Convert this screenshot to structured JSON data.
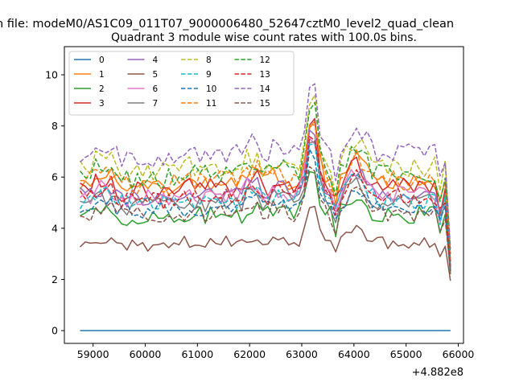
{
  "figure": {
    "suptitle": "n file: modeM0/AS1C09_011T07_9000006480_52647cztM0_level2_quad_clean",
    "offset_label": "+4.882e8"
  },
  "chart_data": {
    "type": "line",
    "title": "Quadrant 3 module wise count rates with 100.0s bins.",
    "xlabel": "",
    "ylabel": "",
    "x_offset": 488200000,
    "xlim": [
      58450,
      66100
    ],
    "ylim": [
      -0.5,
      11.1
    ],
    "xticks": [
      59000,
      60000,
      61000,
      62000,
      63000,
      64000,
      65000,
      66000
    ],
    "xtick_labels": [
      "59000",
      "60000",
      "61000",
      "62000",
      "63000",
      "64000",
      "65000",
      "66000"
    ],
    "yticks": [
      0,
      2,
      4,
      6,
      8,
      10
    ],
    "ytick_labels": [
      "0",
      "2",
      "4",
      "6",
      "8",
      "10"
    ],
    "x_start": 58750,
    "x_step": 100,
    "n_points": 72,
    "legend_position": "upper-left",
    "legend_columns": 4,
    "grid": false,
    "series": [
      {
        "name": "0",
        "color": "#1f77b4",
        "dash": "solid",
        "base": 0.0,
        "amp": 0.0,
        "end": 0.0
      },
      {
        "name": "1",
        "color": "#ff7f0e",
        "dash": "solid",
        "base": 5.8,
        "amp": 0.35,
        "end": 2.3
      },
      {
        "name": "2",
        "color": "#2ca02c",
        "dash": "solid",
        "base": 4.5,
        "amp": 0.35,
        "end": 2.2
      },
      {
        "name": "3",
        "color": "#d62728",
        "dash": "solid",
        "base": 5.6,
        "amp": 0.4,
        "end": 2.7
      },
      {
        "name": "4",
        "color": "#9467bd",
        "dash": "solid",
        "base": 5.3,
        "amp": 0.35,
        "end": 2.5
      },
      {
        "name": "5",
        "color": "#8c564b",
        "dash": "solid",
        "base": 3.45,
        "amp": 0.25,
        "end": 1.95
      },
      {
        "name": "6",
        "color": "#e377c2",
        "dash": "solid",
        "base": 5.3,
        "amp": 0.35,
        "end": 2.4
      },
      {
        "name": "7",
        "color": "#7f7f7f",
        "dash": "solid",
        "base": 5.0,
        "amp": 0.35,
        "end": 2.3
      },
      {
        "name": "8",
        "color": "#bcbd22",
        "dash": "dashed",
        "base": 6.4,
        "amp": 0.4,
        "end": 3.0
      },
      {
        "name": "9",
        "color": "#17becf",
        "dash": "dashed",
        "base": 5.1,
        "amp": 0.35,
        "end": 2.5
      },
      {
        "name": "10",
        "color": "#1f77b4",
        "dash": "dashed",
        "base": 4.8,
        "amp": 0.35,
        "end": 2.3
      },
      {
        "name": "11",
        "color": "#ff7f0e",
        "dash": "dashed",
        "base": 5.9,
        "amp": 0.4,
        "end": 2.8
      },
      {
        "name": "12",
        "color": "#2ca02c",
        "dash": "dashed",
        "base": 6.1,
        "amp": 0.4,
        "end": 3.0
      },
      {
        "name": "13",
        "color": "#d62728",
        "dash": "dashed",
        "base": 5.2,
        "amp": 0.35,
        "end": 2.5
      },
      {
        "name": "14",
        "color": "#9467bd",
        "dash": "dashed",
        "base": 6.9,
        "amp": 0.4,
        "end": 3.2
      },
      {
        "name": "15",
        "color": "#8c564b",
        "dash": "dashed",
        "base": 4.6,
        "amp": 0.35,
        "end": 2.3
      }
    ]
  }
}
